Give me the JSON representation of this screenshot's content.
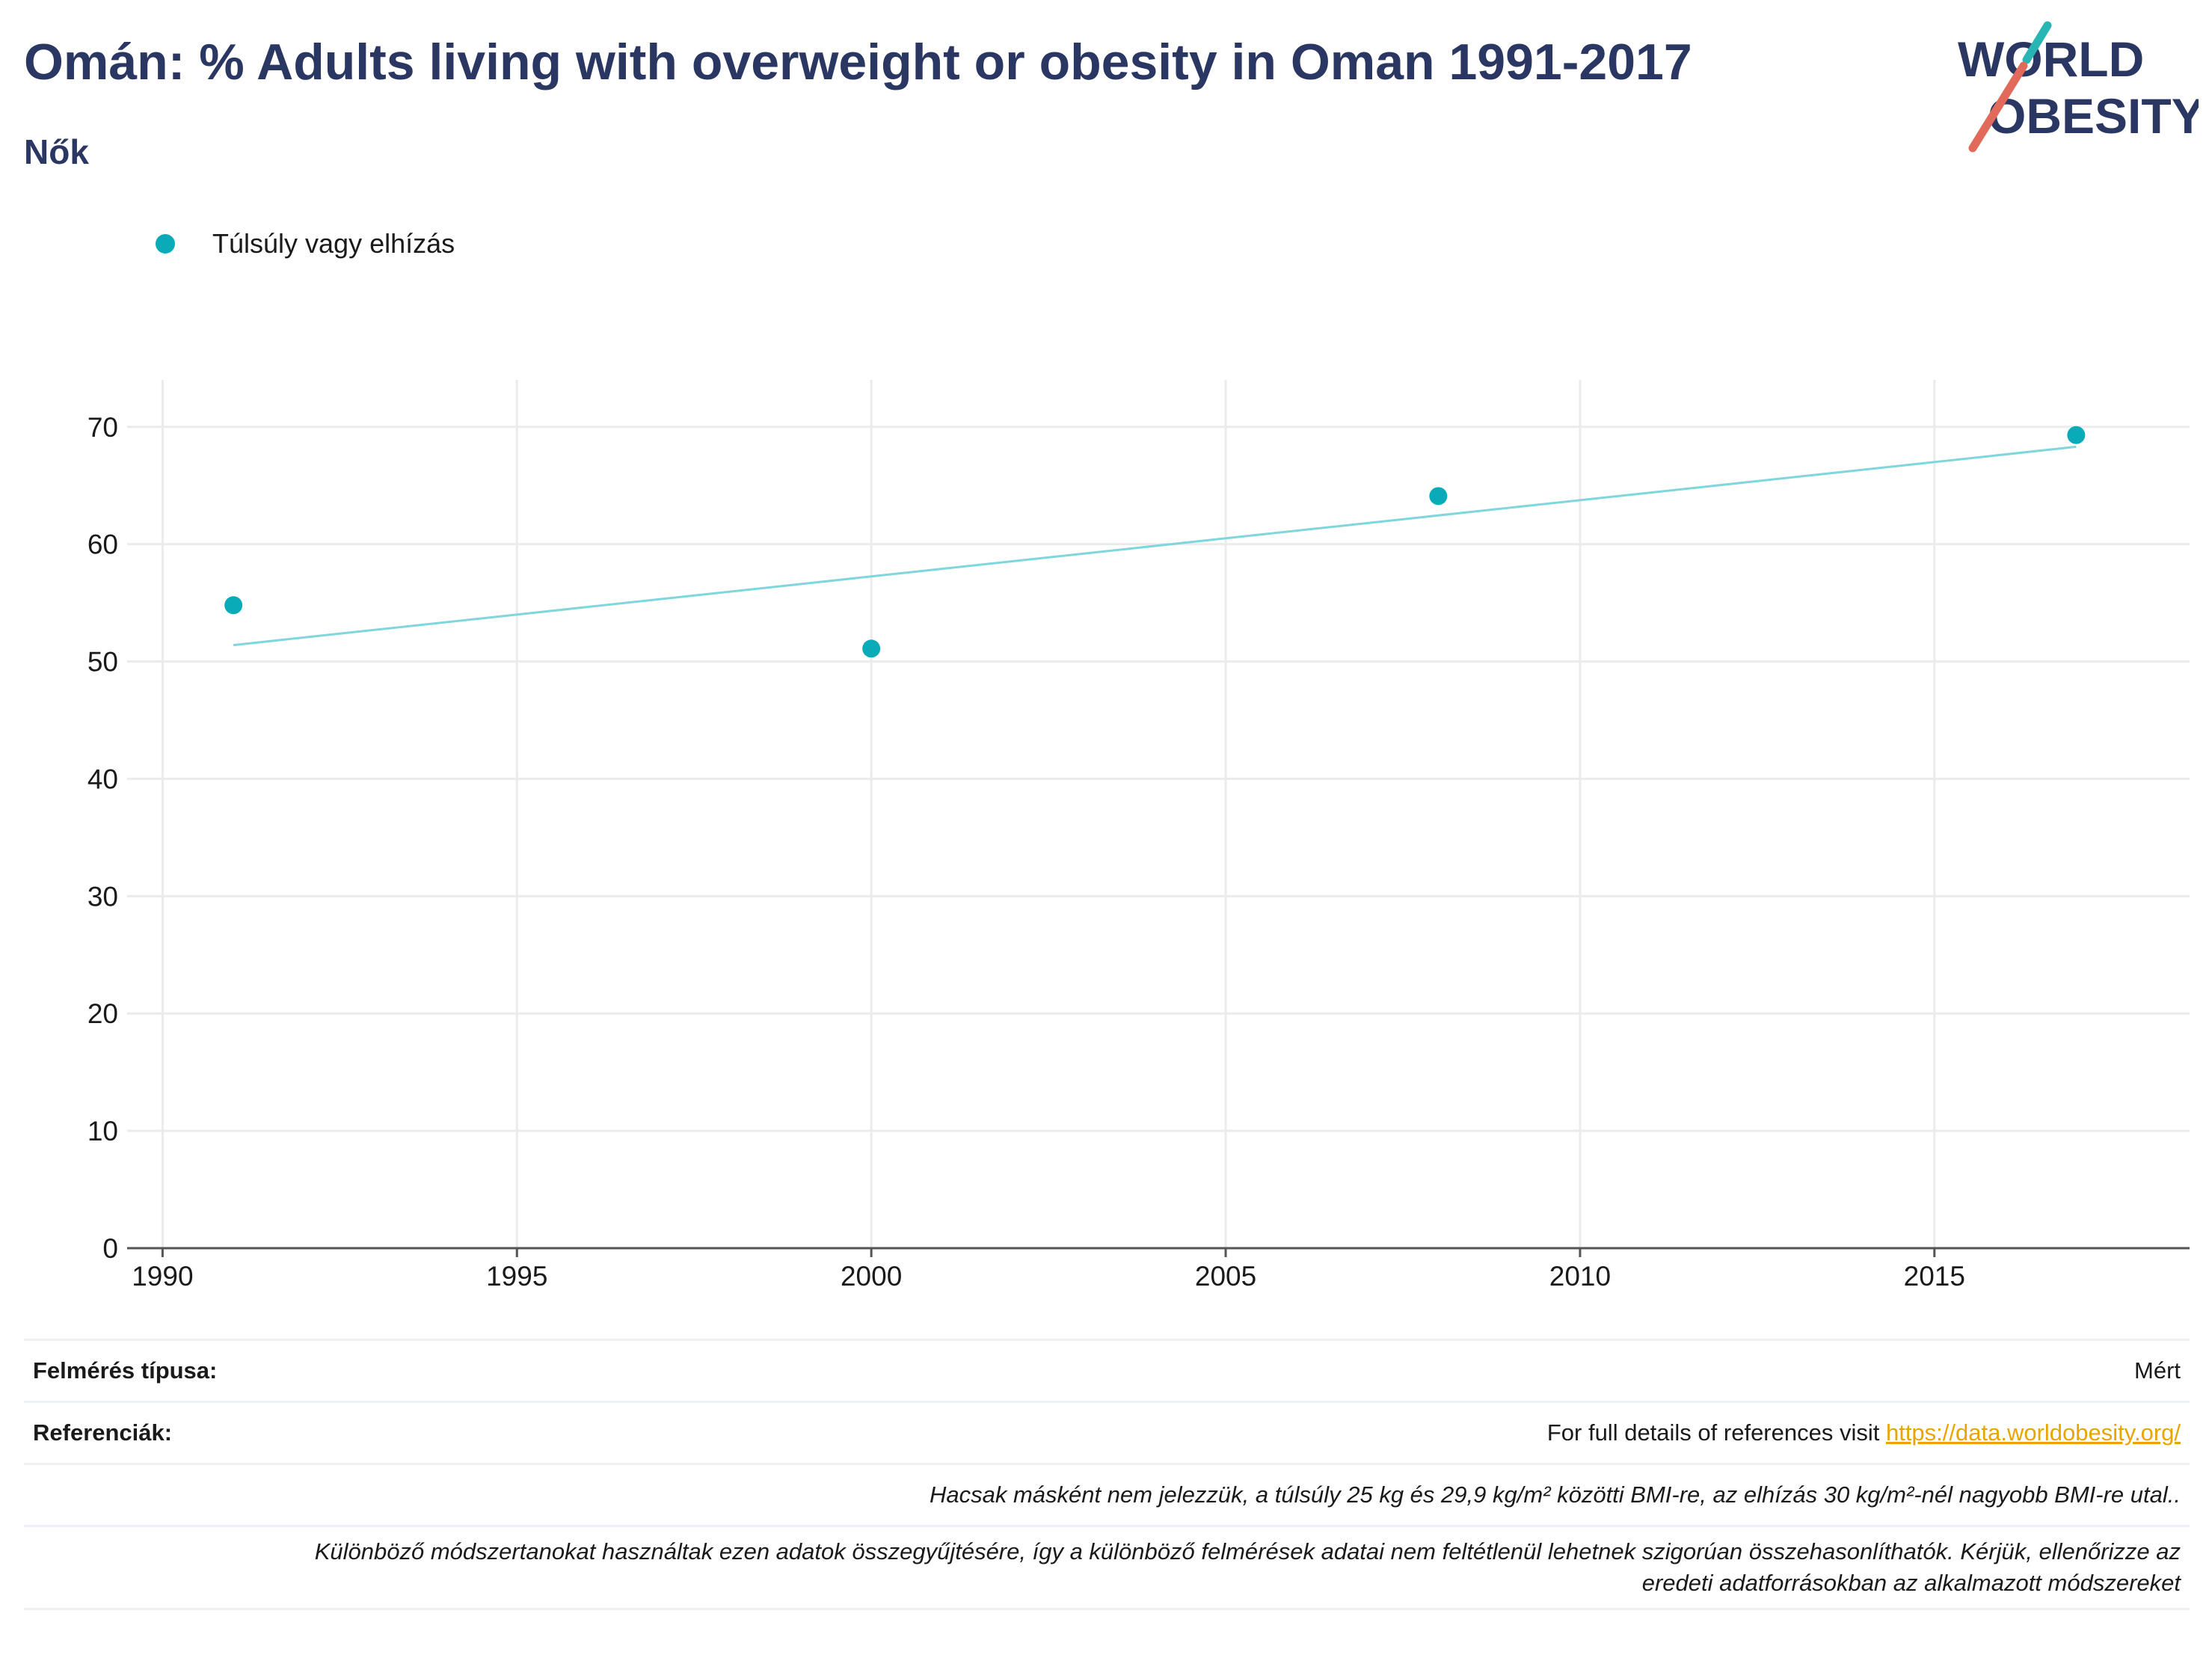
{
  "header": {
    "title": "Omán: % Adults living with overweight or obesity in Oman 1991-2017",
    "subtitle": "Nők"
  },
  "logo": {
    "line1": "WORLD",
    "line2": "OBESITY",
    "colors": {
      "navy": "#2b3763",
      "teal": "#2ab5b5",
      "coral": "#e26a5a"
    }
  },
  "legend": {
    "label": "Túlsúly vagy elhízás",
    "color": "#0aabb8"
  },
  "chart_data": {
    "type": "scatter",
    "series": [
      {
        "name": "Túlsúly vagy elhízás",
        "color": "#0aabb8",
        "x": [
          1991,
          2000,
          2008,
          2017
        ],
        "y": [
          54.8,
          51.1,
          64.1,
          69.3
        ]
      }
    ],
    "trendline": {
      "color": "#7fd6dc",
      "x": [
        1991,
        2017
      ],
      "y": [
        51.4,
        68.3
      ]
    },
    "xlim": [
      1989.5,
      2018.6
    ],
    "ylim": [
      0,
      74
    ],
    "xticks": [
      1990,
      1995,
      2000,
      2005,
      2010,
      2015
    ],
    "yticks": [
      0,
      10,
      20,
      30,
      40,
      50,
      60,
      70
    ],
    "grid": true,
    "legend_position": "top-left",
    "title": "",
    "xlabel": "",
    "ylabel": ""
  },
  "footer": {
    "survey_type_label": "Felmérés típusa:",
    "survey_type_value": "Mért",
    "references_label": "Referenciák:",
    "references_text": "For full details of references visit ",
    "references_link": "https://data.worldobesity.org/",
    "note1": "Hacsak másként nem jelezzük, a túlsúly 25 kg és 29,9 kg/m² közötti BMI-re, az elhízás 30 kg/m²-nél nagyobb BMI-re utal..",
    "note2a": "Különböző módszertanokat használtak ezen adatok összegyűjtésére, így a különböző felmérések adatai nem feltétlenül lehetnek szigorúan összehasonlíthatók. Kérjük, ellenőrizze az",
    "note2b": "eredeti adatforrásokban az alkalmazott módszereket"
  }
}
